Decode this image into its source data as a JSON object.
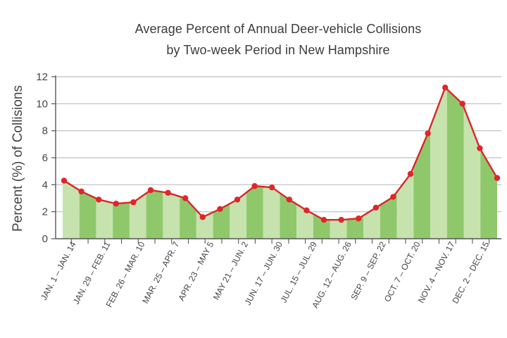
{
  "chart_data": {
    "type": "area",
    "title_line1": "Average Percent of Annual Deer-vehicle Collisions",
    "title_line2": "by Two-week Period in New Hampshire",
    "xlabel": "",
    "ylabel": "Percent (%) of Collisions",
    "ylim": [
      0,
      12
    ],
    "yticks": [
      0,
      2,
      4,
      6,
      8,
      10,
      12
    ],
    "grid": true,
    "labeled_periods": [
      "JAN. 1 – JAN. 14",
      "JAN. 29 – FEB. 11",
      "FEB. 26 – MAR. 10",
      "MAR. 25 – APR. 7",
      "APR. 23 – MAY 5",
      "MAY 21 – JUN. 2",
      "JUN. 17 – JUN. 30",
      "JUL. 15 – JUL. 29",
      "AUG. 12 – AUG. 26",
      "SEP. 9 – SEP. 22",
      "OCT. 7 – OCT. 20",
      "NOV. 4 – NOV. 17",
      "DEC. 2 – DEC. 15"
    ],
    "values": [
      4.3,
      3.5,
      2.9,
      2.6,
      2.7,
      3.6,
      3.4,
      3.0,
      1.6,
      2.2,
      2.9,
      3.9,
      3.8,
      2.9,
      2.1,
      1.4,
      1.4,
      1.5,
      2.3,
      3.1,
      4.8,
      7.8,
      11.2,
      10.0,
      6.7,
      4.5
    ],
    "colors": {
      "line": "#d9262c",
      "marker": "#e0252b",
      "fill_dark": "#8fc86a",
      "fill_light": "#c6e3ae",
      "grid": "#bdbdbd",
      "axis": "#555555"
    }
  }
}
